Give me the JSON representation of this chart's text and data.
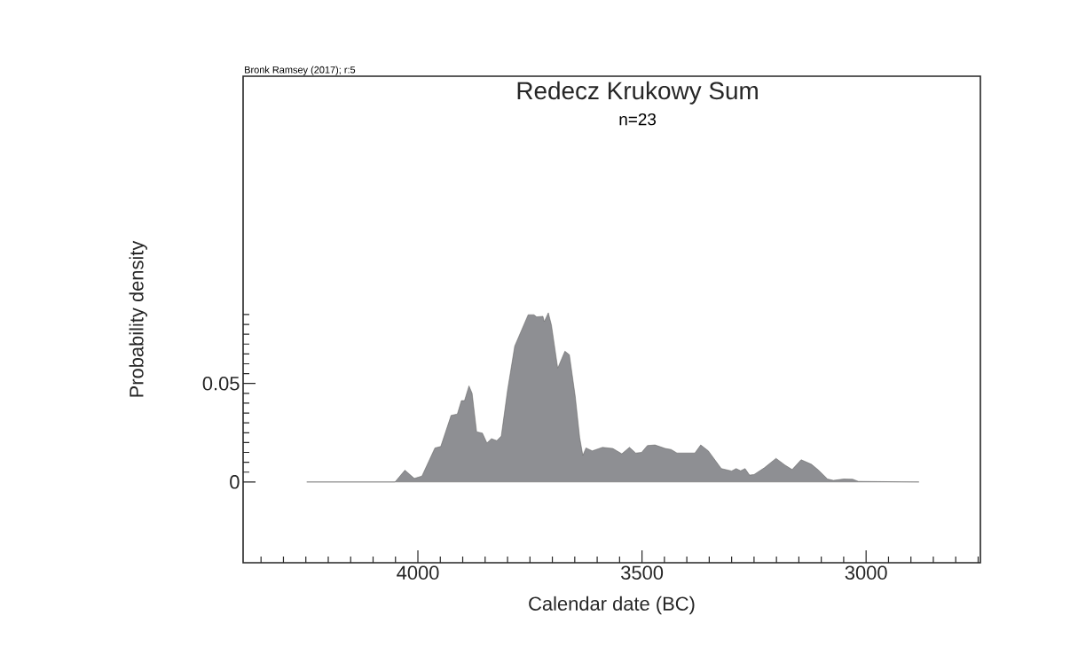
{
  "chart_data": {
    "type": "area",
    "title": "Redecz Krukowy Sum",
    "subtitle": "n=23",
    "xlabel": "Calendar date (BC)",
    "ylabel": "Probability density",
    "annotations": [
      "Bronk Ramsey (2017); r:5"
    ],
    "xlim": [
      4390,
      2745
    ],
    "ylim": [
      -0.041,
      0.206
    ],
    "xticks": [
      {
        "value": 4350,
        "label": null
      },
      {
        "value": 4300,
        "label": null
      },
      {
        "value": 4250,
        "label": null
      },
      {
        "value": 4200,
        "label": null
      },
      {
        "value": 4150,
        "label": null
      },
      {
        "value": 4100,
        "label": null
      },
      {
        "value": 4050,
        "label": null
      },
      4000,
      {
        "value": 3950,
        "label": null
      },
      {
        "value": 3900,
        "label": null
      },
      {
        "value": 3850,
        "label": null
      },
      {
        "value": 3800,
        "label": null
      },
      {
        "value": 3750,
        "label": null
      },
      {
        "value": 3700,
        "label": null
      },
      {
        "value": 3650,
        "label": null
      },
      {
        "value": 3600,
        "label": null
      },
      {
        "value": 3550,
        "label": null
      },
      3500,
      {
        "value": 3450,
        "label": null
      },
      {
        "value": 3400,
        "label": null
      },
      {
        "value": 3350,
        "label": null
      },
      {
        "value": 3300,
        "label": null
      },
      {
        "value": 3250,
        "label": null
      },
      {
        "value": 3200,
        "label": null
      },
      {
        "value": 3150,
        "label": null
      },
      {
        "value": 3100,
        "label": null
      },
      {
        "value": 3050,
        "label": null
      },
      3000,
      {
        "value": 2950,
        "label": null
      },
      {
        "value": 2900,
        "label": null
      },
      {
        "value": 2850,
        "label": null
      },
      {
        "value": 2800,
        "label": null
      },
      {
        "value": 2750,
        "label": null
      }
    ],
    "yticks": [
      0,
      {
        "value": 0.005,
        "label": null
      },
      {
        "value": 0.01,
        "label": null
      },
      {
        "value": 0.015,
        "label": null
      },
      {
        "value": 0.02,
        "label": null
      },
      {
        "value": 0.025,
        "label": null
      },
      {
        "value": 0.03,
        "label": null
      },
      {
        "value": 0.035,
        "label": null
      },
      {
        "value": 0.04,
        "label": null
      },
      {
        "value": 0.045,
        "label": null
      },
      0.05,
      {
        "value": 0.055,
        "label": null
      },
      {
        "value": 0.06,
        "label": null
      },
      {
        "value": 0.065,
        "label": null
      },
      {
        "value": 0.07,
        "label": null
      },
      {
        "value": 0.075,
        "label": null
      },
      {
        "value": 0.08,
        "label": null
      },
      {
        "value": 0.085,
        "label": null
      }
    ],
    "grid": false,
    "series": [
      {
        "color": "#8e8f93",
        "x": [
          4248,
          4051,
          4029,
          4008,
          3991,
          3962,
          3949,
          3926,
          3912,
          3903,
          3896,
          3886,
          3879,
          3869,
          3856,
          3846,
          3836,
          3824,
          3814,
          3800,
          3784,
          3754,
          3741,
          3735,
          3721,
          3718,
          3709,
          3702,
          3688,
          3672,
          3662,
          3649,
          3639,
          3632,
          3625,
          3611,
          3588,
          3565,
          3545,
          3528,
          3514,
          3501,
          3488,
          3471,
          3448,
          3435,
          3422,
          3382,
          3369,
          3352,
          3323,
          3300,
          3290,
          3280,
          3270,
          3260,
          3250,
          3227,
          3201,
          3181,
          3165,
          3145,
          3122,
          3106,
          3086,
          3073,
          3050,
          3030,
          3017,
          2882
        ],
        "values": [
          0,
          0,
          0.006,
          0.0018,
          0.003,
          0.0173,
          0.018,
          0.0338,
          0.0345,
          0.0413,
          0.0413,
          0.0488,
          0.045,
          0.0255,
          0.0248,
          0.0198,
          0.022,
          0.021,
          0.0233,
          0.0466,
          0.069,
          0.0849,
          0.0849,
          0.0838,
          0.0841,
          0.0814,
          0.0859,
          0.0796,
          0.0578,
          0.0664,
          0.0646,
          0.0436,
          0.0225,
          0.0135,
          0.0173,
          0.0158,
          0.0176,
          0.017,
          0.0143,
          0.0176,
          0.0147,
          0.015,
          0.0185,
          0.0188,
          0.017,
          0.0165,
          0.0147,
          0.0147,
          0.0188,
          0.0158,
          0.0068,
          0.0056,
          0.0068,
          0.0057,
          0.0068,
          0.0035,
          0.0038,
          0.0072,
          0.012,
          0.0086,
          0.0063,
          0.0113,
          0.009,
          0.006,
          0.0015,
          0.0008,
          0.0015,
          0.0014,
          0.0003,
          0
        ]
      }
    ]
  }
}
